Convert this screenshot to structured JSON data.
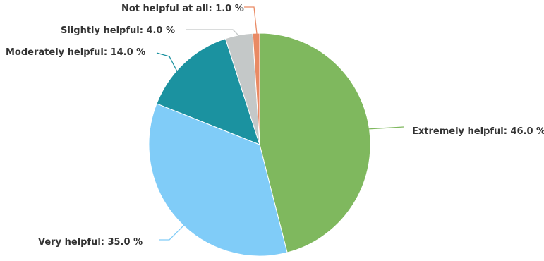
{
  "chart_data": {
    "type": "pie",
    "title": "",
    "unit": "%",
    "slices": [
      {
        "label": "Extremely helpful",
        "value": 46.0,
        "display": "Extremely helpful: 46.0 %",
        "color": "#7fb85e"
      },
      {
        "label": "Very helpful",
        "value": 35.0,
        "display": "Very helpful: 35.0 %",
        "color": "#80ccf8"
      },
      {
        "label": "Moderately helpful",
        "value": 14.0,
        "display": "Moderately helpful: 14.0 %",
        "color": "#1b92a0"
      },
      {
        "label": "Slightly helpful",
        "value": 4.0,
        "display": "Slightly helpful: 4.0 %",
        "color": "#c4c8c8"
      },
      {
        "label": "Not helpful at all",
        "value": 1.0,
        "display": "Not helpful at all: 1.0 %",
        "color": "#e98a64"
      }
    ]
  }
}
